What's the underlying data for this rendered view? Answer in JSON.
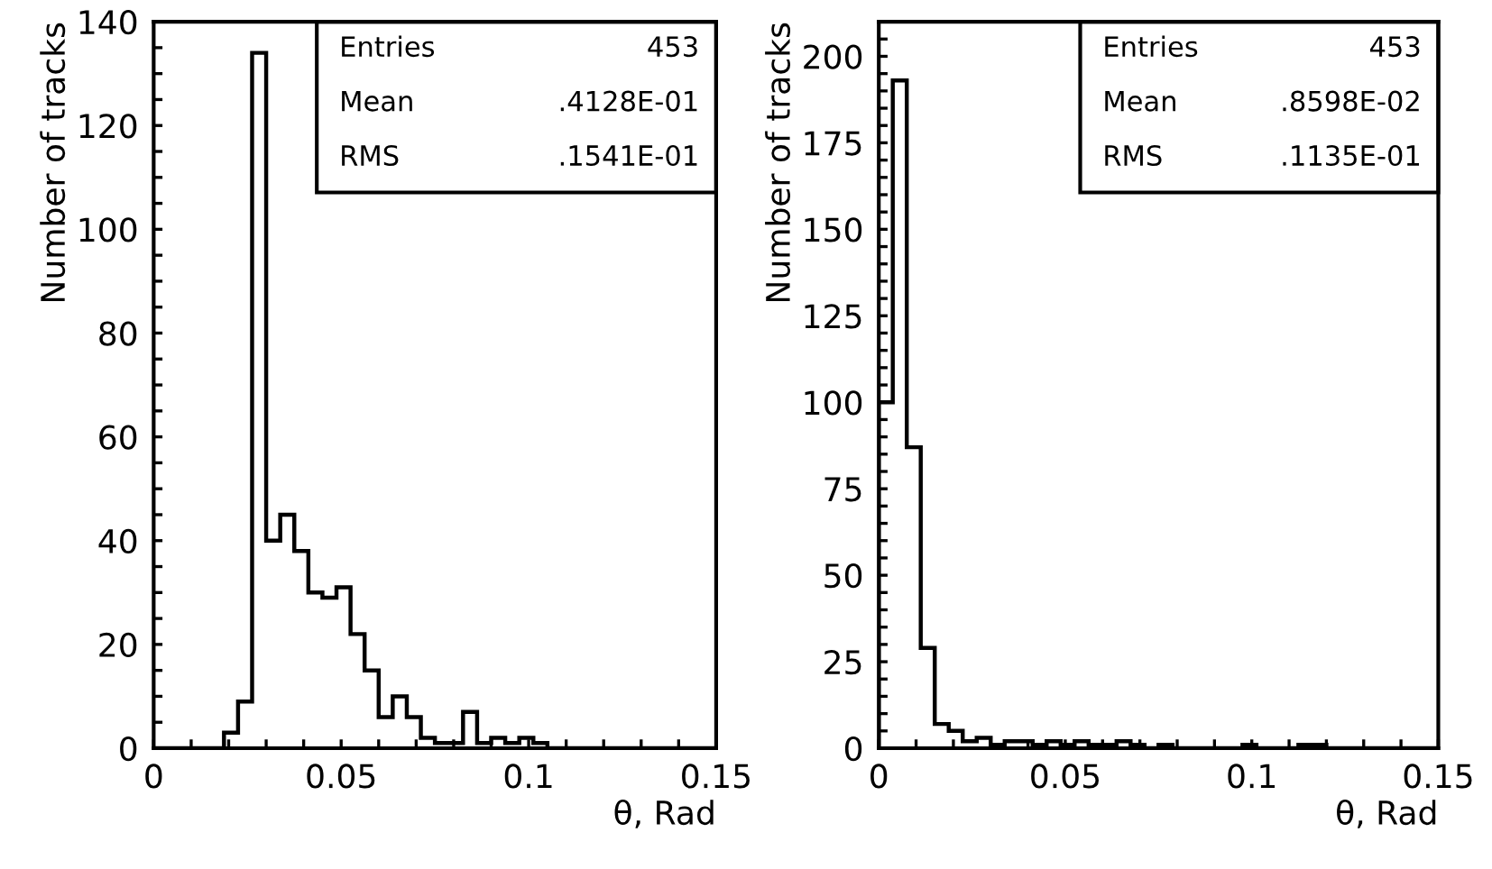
{
  "chart_data": [
    {
      "type": "histogram",
      "xlabel": "θ, Rad",
      "ylabel": "Number of tracks",
      "color": "#000000",
      "bins": [
        0,
        0.00375,
        0.0075,
        0.01125,
        0.015,
        0.01875,
        0.0225,
        0.02625,
        0.03,
        0.03375,
        0.0375,
        0.04125,
        0.045,
        0.04875,
        0.0525,
        0.05625,
        0.06,
        0.06375,
        0.0675,
        0.07125,
        0.075,
        0.07875,
        0.0825,
        0.08625,
        0.09,
        0.09375,
        0.0975,
        0.10125,
        0.105,
        0.10875,
        0.1125,
        0.11625,
        0.12,
        0.12375,
        0.1275,
        0.13125,
        0.135,
        0.13875,
        0.1425,
        0.14625,
        0.15
      ],
      "values": [
        0,
        0,
        0,
        0,
        0,
        3,
        9,
        134,
        40,
        45,
        38,
        30,
        29,
        31,
        22,
        15,
        6,
        10,
        6,
        2,
        1,
        1,
        7,
        1,
        2,
        1,
        2,
        1,
        0,
        0,
        0,
        0,
        0,
        0,
        0,
        0,
        0,
        0,
        0,
        0
      ],
      "xlim": [
        0,
        0.15
      ],
      "ylim": [
        0,
        140
      ],
      "xticks": [
        0,
        {
          "value": 0.01,
          "label": null
        },
        {
          "value": 0.02,
          "label": null
        },
        {
          "value": 0.03,
          "label": null
        },
        {
          "value": 0.04,
          "label": null
        },
        0.05,
        {
          "value": 0.06,
          "label": null
        },
        {
          "value": 0.07,
          "label": null
        },
        {
          "value": 0.08,
          "label": null
        },
        {
          "value": 0.09,
          "label": null
        },
        0.1,
        {
          "value": 0.11,
          "label": null
        },
        {
          "value": 0.12,
          "label": null
        },
        {
          "value": 0.13,
          "label": null
        },
        {
          "value": 0.14,
          "label": null
        },
        0.15
      ],
      "yticks": [
        0,
        {
          "value": 5,
          "label": null
        },
        {
          "value": 10,
          "label": null
        },
        {
          "value": 15,
          "label": null
        },
        20,
        {
          "value": 25,
          "label": null
        },
        {
          "value": 30,
          "label": null
        },
        {
          "value": 35,
          "label": null
        },
        40,
        {
          "value": 45,
          "label": null
        },
        {
          "value": 50,
          "label": null
        },
        {
          "value": 55,
          "label": null
        },
        60,
        {
          "value": 65,
          "label": null
        },
        {
          "value": 70,
          "label": null
        },
        {
          "value": 75,
          "label": null
        },
        80,
        {
          "value": 85,
          "label": null
        },
        {
          "value": 90,
          "label": null
        },
        {
          "value": 95,
          "label": null
        },
        100,
        {
          "value": 105,
          "label": null
        },
        {
          "value": 110,
          "label": null
        },
        {
          "value": 115,
          "label": null
        },
        120,
        {
          "value": 125,
          "label": null
        },
        {
          "value": 130,
          "label": null
        },
        {
          "value": 135,
          "label": null
        },
        140
      ],
      "annotations": [
        "Entries",
        "453",
        "Mean",
        ".4128E-01",
        "RMS",
        ".1541E-01"
      ],
      "grid": false,
      "legend": false
    },
    {
      "type": "histogram",
      "xlabel": "θ, Rad",
      "ylabel": "Number of tracks",
      "color": "#000000",
      "bins": [
        0,
        0.00375,
        0.0075,
        0.01125,
        0.015,
        0.01875,
        0.0225,
        0.02625,
        0.03,
        0.03375,
        0.0375,
        0.04125,
        0.045,
        0.04875,
        0.0525,
        0.05625,
        0.06,
        0.06375,
        0.0675,
        0.07125,
        0.075,
        0.07875,
        0.0825,
        0.08625,
        0.09,
        0.09375,
        0.0975,
        0.10125,
        0.105,
        0.10875,
        0.1125,
        0.11625,
        0.12,
        0.12375,
        0.1275,
        0.13125,
        0.135,
        0.13875,
        0.1425,
        0.14625,
        0.15
      ],
      "values": [
        100,
        193,
        87,
        29,
        7,
        5,
        2,
        3,
        1,
        2,
        2,
        1,
        2,
        1,
        2,
        1,
        1,
        2,
        1,
        0,
        1,
        0,
        0,
        0,
        0,
        0,
        1,
        0,
        0,
        0,
        1,
        1,
        0,
        0,
        0,
        0,
        0,
        0,
        0,
        0
      ],
      "xlim": [
        0,
        0.15
      ],
      "ylim": [
        0,
        210
      ],
      "xticks": [
        0,
        {
          "value": 0.01,
          "label": null
        },
        {
          "value": 0.02,
          "label": null
        },
        {
          "value": 0.03,
          "label": null
        },
        {
          "value": 0.04,
          "label": null
        },
        0.05,
        {
          "value": 0.06,
          "label": null
        },
        {
          "value": 0.07,
          "label": null
        },
        {
          "value": 0.08,
          "label": null
        },
        {
          "value": 0.09,
          "label": null
        },
        0.1,
        {
          "value": 0.11,
          "label": null
        },
        {
          "value": 0.12,
          "label": null
        },
        {
          "value": 0.13,
          "label": null
        },
        {
          "value": 0.14,
          "label": null
        },
        0.15
      ],
      "yticks": [
        0,
        {
          "value": 5,
          "label": null
        },
        {
          "value": 10,
          "label": null
        },
        {
          "value": 15,
          "label": null
        },
        {
          "value": 20,
          "label": null
        },
        25,
        {
          "value": 30,
          "label": null
        },
        {
          "value": 35,
          "label": null
        },
        {
          "value": 40,
          "label": null
        },
        {
          "value": 45,
          "label": null
        },
        50,
        {
          "value": 55,
          "label": null
        },
        {
          "value": 60,
          "label": null
        },
        {
          "value": 65,
          "label": null
        },
        {
          "value": 70,
          "label": null
        },
        75,
        {
          "value": 80,
          "label": null
        },
        {
          "value": 85,
          "label": null
        },
        {
          "value": 90,
          "label": null
        },
        {
          "value": 95,
          "label": null
        },
        100,
        {
          "value": 105,
          "label": null
        },
        {
          "value": 110,
          "label": null
        },
        {
          "value": 115,
          "label": null
        },
        {
          "value": 120,
          "label": null
        },
        125,
        {
          "value": 130,
          "label": null
        },
        {
          "value": 135,
          "label": null
        },
        {
          "value": 140,
          "label": null
        },
        {
          "value": 145,
          "label": null
        },
        150,
        {
          "value": 155,
          "label": null
        },
        {
          "value": 160,
          "label": null
        },
        {
          "value": 165,
          "label": null
        },
        {
          "value": 170,
          "label": null
        },
        175,
        {
          "value": 180,
          "label": null
        },
        {
          "value": 185,
          "label": null
        },
        {
          "value": 190,
          "label": null
        },
        {
          "value": 195,
          "label": null
        },
        200,
        {
          "value": 205,
          "label": null
        }
      ],
      "annotations": [
        "Entries",
        "453",
        "Mean",
        ".8598E-02",
        "RMS",
        ".1135E-01"
      ],
      "grid": false,
      "legend": false
    }
  ]
}
